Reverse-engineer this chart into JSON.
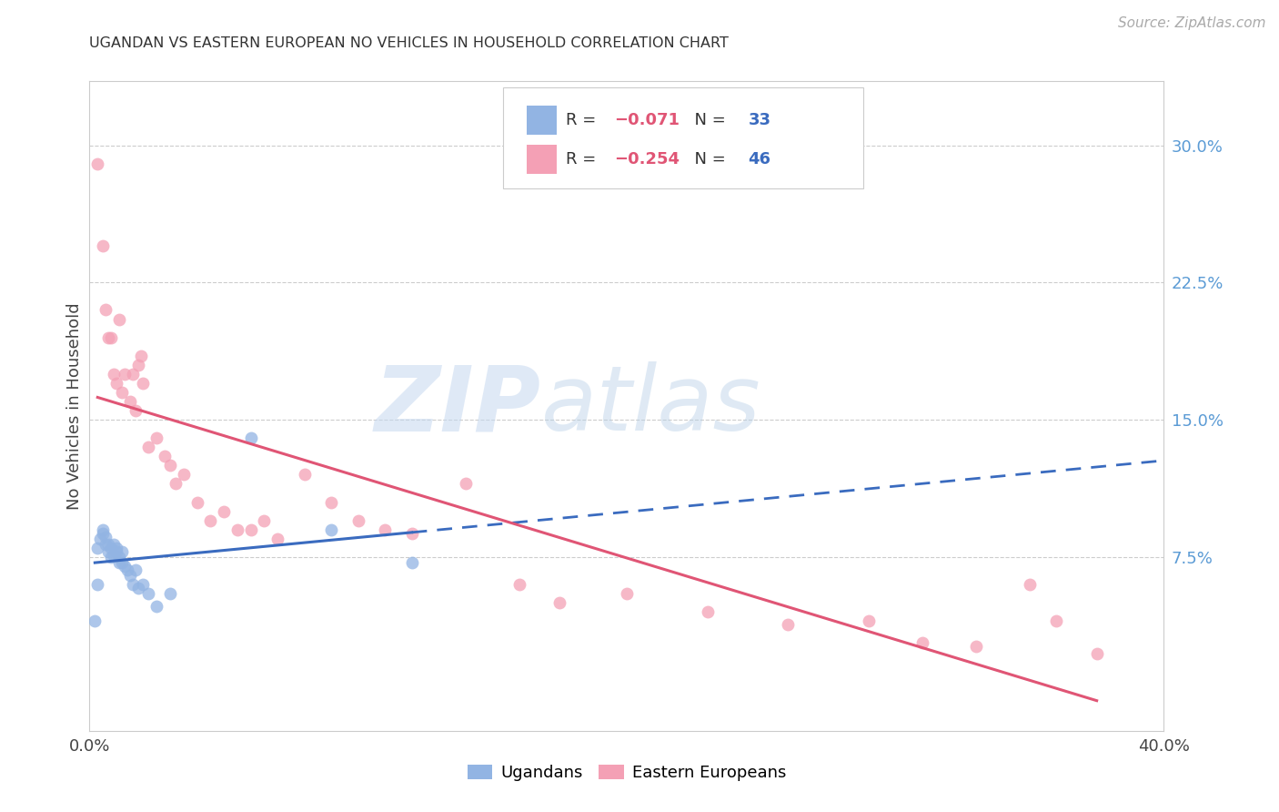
{
  "title": "UGANDAN VS EASTERN EUROPEAN NO VEHICLES IN HOUSEHOLD CORRELATION CHART",
  "source": "Source: ZipAtlas.com",
  "ylabel": "No Vehicles in Household",
  "xlim": [
    0.0,
    0.4
  ],
  "ylim": [
    -0.02,
    0.335
  ],
  "color_ugandan": "#92b4e3",
  "color_eastern": "#f4a0b5",
  "color_trendline_ugandan": "#3a6bbf",
  "color_trendline_eastern": "#e05575",
  "background_color": "#ffffff",
  "watermark_zip": "ZIP",
  "watermark_atlas": "atlas",
  "ugandan_x": [
    0.002,
    0.003,
    0.003,
    0.004,
    0.005,
    0.005,
    0.006,
    0.006,
    0.007,
    0.007,
    0.008,
    0.008,
    0.009,
    0.009,
    0.01,
    0.01,
    0.011,
    0.011,
    0.012,
    0.012,
    0.013,
    0.014,
    0.015,
    0.016,
    0.017,
    0.018,
    0.02,
    0.022,
    0.025,
    0.03,
    0.06,
    0.09,
    0.12
  ],
  "ugandan_y": [
    0.04,
    0.06,
    0.08,
    0.085,
    0.09,
    0.088,
    0.082,
    0.086,
    0.078,
    0.082,
    0.08,
    0.075,
    0.076,
    0.082,
    0.078,
    0.08,
    0.075,
    0.072,
    0.072,
    0.078,
    0.07,
    0.068,
    0.065,
    0.06,
    0.068,
    0.058,
    0.06,
    0.055,
    0.048,
    0.055,
    0.14,
    0.09,
    0.072
  ],
  "eastern_x": [
    0.003,
    0.005,
    0.006,
    0.007,
    0.008,
    0.009,
    0.01,
    0.011,
    0.012,
    0.013,
    0.015,
    0.016,
    0.017,
    0.018,
    0.019,
    0.02,
    0.022,
    0.025,
    0.028,
    0.03,
    0.032,
    0.035,
    0.04,
    0.045,
    0.05,
    0.055,
    0.06,
    0.065,
    0.07,
    0.08,
    0.09,
    0.1,
    0.11,
    0.12,
    0.14,
    0.16,
    0.175,
    0.2,
    0.23,
    0.26,
    0.29,
    0.31,
    0.33,
    0.35,
    0.36,
    0.375
  ],
  "eastern_y": [
    0.29,
    0.245,
    0.21,
    0.195,
    0.195,
    0.175,
    0.17,
    0.205,
    0.165,
    0.175,
    0.16,
    0.175,
    0.155,
    0.18,
    0.185,
    0.17,
    0.135,
    0.14,
    0.13,
    0.125,
    0.115,
    0.12,
    0.105,
    0.095,
    0.1,
    0.09,
    0.09,
    0.095,
    0.085,
    0.12,
    0.105,
    0.095,
    0.09,
    0.088,
    0.115,
    0.06,
    0.05,
    0.055,
    0.045,
    0.038,
    0.04,
    0.028,
    0.026,
    0.06,
    0.04,
    0.022
  ]
}
